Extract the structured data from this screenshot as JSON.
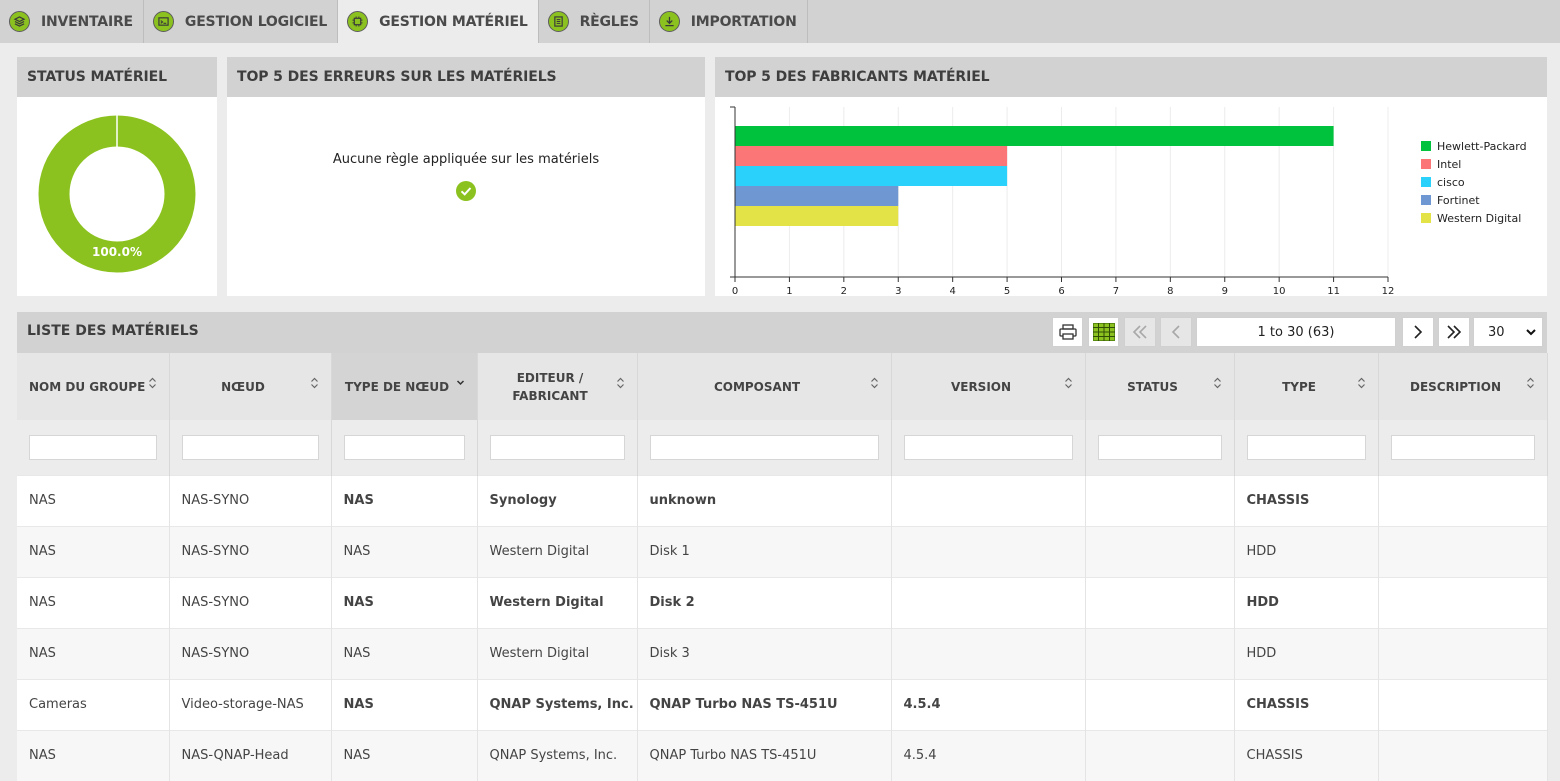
{
  "nav": {
    "tabs": [
      {
        "label": "INVENTAIRE",
        "icon": "layers-icon"
      },
      {
        "label": "GESTION LOGICIEL",
        "icon": "software-icon"
      },
      {
        "label": "GESTION MATÉRIEL",
        "icon": "chip-icon",
        "active": true
      },
      {
        "label": "RÈGLES",
        "icon": "rules-icon"
      },
      {
        "label": "IMPORTATION",
        "icon": "download-icon"
      }
    ]
  },
  "status_panel": {
    "title": "STATUS MATÉRIEL",
    "percent_label": "100.0%",
    "color": "#8cc21f"
  },
  "errors_panel": {
    "title": "TOP 5 DES ERREURS SUR LES MATÉRIELS",
    "message": "Aucune règle appliquée sur les matériels"
  },
  "manufacturers_panel": {
    "title": "TOP 5 DES FABRICANTS MATÉRIEL"
  },
  "chart_data": [
    {
      "type": "pie",
      "categories": [
        ""
      ],
      "values": [
        100.0
      ],
      "data_labels": [
        "100.0%"
      ],
      "colors": [
        "#8cc21f"
      ]
    },
    {
      "type": "bar",
      "orientation": "horizontal",
      "categories": [
        "Hewlett-Packard",
        "Intel",
        "cisco",
        "Fortinet",
        "Western Digital"
      ],
      "values": [
        11,
        5,
        5,
        3,
        3
      ],
      "colors": [
        "#00c23c",
        "#fb7676",
        "#2ad1fa",
        "#6f97d2",
        "#e3e347"
      ],
      "xlim": [
        0,
        12
      ],
      "xticks": [
        "0",
        "1",
        "2",
        "3",
        "4",
        "5",
        "6",
        "7",
        "8",
        "9",
        "10",
        "11",
        "12"
      ],
      "legend": "right",
      "grid": true
    }
  ],
  "list": {
    "title": "LISTE DES MATÉRIELS",
    "pagination": "1 to 30 (63)",
    "page_size": "30",
    "columns": [
      {
        "label": "NOM DU GROUPE",
        "align": "left"
      },
      {
        "label": "NŒUD",
        "align": "center"
      },
      {
        "label": "TYPE DE NŒUD",
        "align": "center",
        "sorted": true
      },
      {
        "label": "EDITEUR / FABRICANT",
        "align": "center"
      },
      {
        "label": "COMPOSANT",
        "align": "center"
      },
      {
        "label": "VERSION",
        "align": "center"
      },
      {
        "label": "STATUS",
        "align": "center"
      },
      {
        "label": "TYPE",
        "align": "center"
      },
      {
        "label": "DESCRIPTION",
        "align": "center"
      }
    ],
    "rows": [
      {
        "bold": true,
        "cells": [
          "NAS",
          "NAS-SYNO",
          "NAS",
          "Synology",
          "unknown",
          "",
          "",
          "CHASSIS",
          ""
        ]
      },
      {
        "bold": false,
        "cells": [
          "NAS",
          "NAS-SYNO",
          "NAS",
          "Western Digital",
          "Disk 1",
          "",
          "",
          "HDD",
          ""
        ]
      },
      {
        "bold": true,
        "cells": [
          "NAS",
          "NAS-SYNO",
          "NAS",
          "Western Digital",
          "Disk 2",
          "",
          "",
          "HDD",
          ""
        ]
      },
      {
        "bold": false,
        "cells": [
          "NAS",
          "NAS-SYNO",
          "NAS",
          "Western Digital",
          "Disk 3",
          "",
          "",
          "HDD",
          ""
        ]
      },
      {
        "bold": true,
        "cells": [
          "Cameras",
          "Video-storage-NAS",
          "NAS",
          "QNAP Systems, Inc.",
          "QNAP Turbo NAS TS-451U",
          "4.5.4",
          "",
          "CHASSIS",
          ""
        ]
      },
      {
        "bold": false,
        "cells": [
          "NAS",
          "NAS-QNAP-Head",
          "NAS",
          "QNAP Systems, Inc.",
          "QNAP Turbo NAS TS-451U",
          "4.5.4",
          "",
          "CHASSIS",
          ""
        ]
      }
    ]
  }
}
